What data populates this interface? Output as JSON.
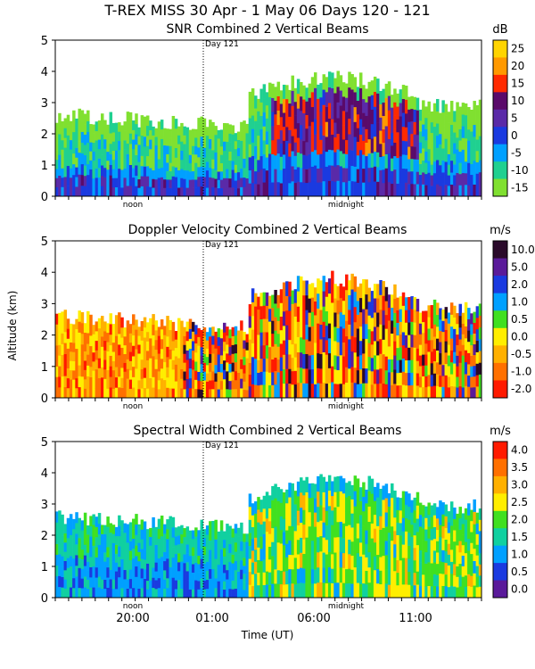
{
  "main_title": "T-REX MISS   30 Apr -  1 May 06 Days 120 - 121",
  "y_axis_label": "Altitude (km)",
  "x_axis_label": "Time (UT)",
  "y_ticks": [
    "0",
    "1",
    "2",
    "3",
    "4",
    "5"
  ],
  "x_tick_labels": [
    "20:00",
    "01:00",
    "06:00",
    "11:00"
  ],
  "panel_time_labels": [
    "noon",
    "midnight"
  ],
  "day_marker": "Day 121",
  "chart_data": [
    {
      "type": "heatmap",
      "title": "SNR Combined 2 Vertical Beams",
      "unit": "dB",
      "ylim": [
        0,
        5
      ],
      "colorbar_ticks": [
        "25",
        "20",
        "15",
        "10",
        "5",
        "0",
        "-5",
        "-10",
        "-15"
      ],
      "colorbar_colors": [
        "#ffd400",
        "#ff9900",
        "#ff2a00",
        "#5a0a6a",
        "#5a2aa8",
        "#1a3ae0",
        "#00a0ff",
        "#20d090",
        "#80e030"
      ]
    },
    {
      "type": "heatmap",
      "title": "Doppler Velocity Combined 2 Vertical Beams",
      "unit": "m/s",
      "ylim": [
        0,
        5
      ],
      "colorbar_ticks": [
        "10.0",
        "5.0",
        "2.0",
        "1.0",
        "0.5",
        "0.0",
        "-0.5",
        "-1.0",
        "-2.0"
      ],
      "colorbar_colors": [
        "#2a0a2a",
        "#5a1a9a",
        "#1a3ae0",
        "#00a0ff",
        "#40e020",
        "#ffee00",
        "#ffb000",
        "#ff7000",
        "#ff1a00"
      ]
    },
    {
      "type": "heatmap",
      "title": "Spectral Width Combined 2 Vertical Beams",
      "unit": "m/s",
      "ylim": [
        0,
        5
      ],
      "colorbar_ticks": [
        "4.0",
        "3.5",
        "3.0",
        "2.5",
        "2.0",
        "1.5",
        "1.0",
        "0.5",
        "0.0"
      ],
      "colorbar_colors": [
        "#ff1a00",
        "#ff7000",
        "#ffb000",
        "#ffee00",
        "#40e020",
        "#10d0a0",
        "#00a0ff",
        "#1a3ae0",
        "#5a1a9a"
      ]
    }
  ]
}
